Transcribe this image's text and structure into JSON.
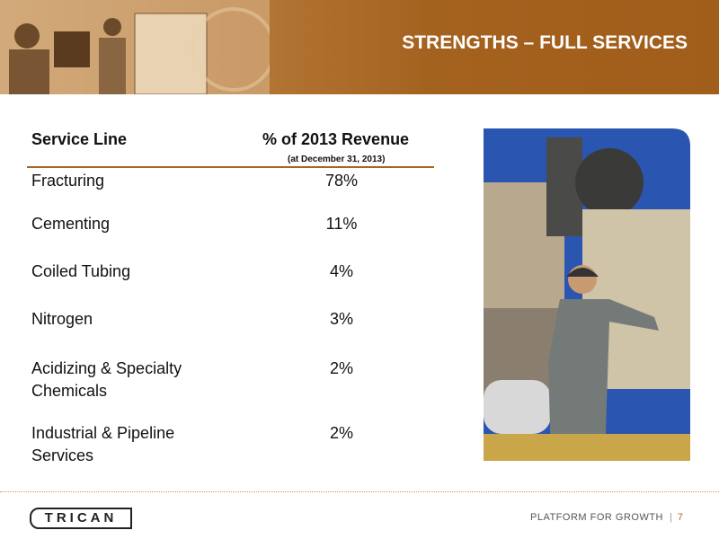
{
  "header": {
    "title": "STRENGTHS – FULL SERVICES"
  },
  "table": {
    "columns": [
      "Service Line",
      "% of 2013 Revenue"
    ],
    "column_note": "(at December 31, 2013)",
    "rows": [
      [
        "Fracturing",
        "78%"
      ],
      [
        "Cementing",
        "11%"
      ],
      [
        "Coiled Tubing",
        "4%"
      ],
      [
        "Nitrogen",
        "3%"
      ],
      [
        "Acidizing & Specialty Chemicals",
        "2%"
      ],
      [
        "Industrial & Pipeline Services",
        "2%"
      ]
    ]
  },
  "footer": {
    "logo": "TRICAN",
    "tagline": "PLATFORM FOR GROWTH",
    "page": "7"
  }
}
